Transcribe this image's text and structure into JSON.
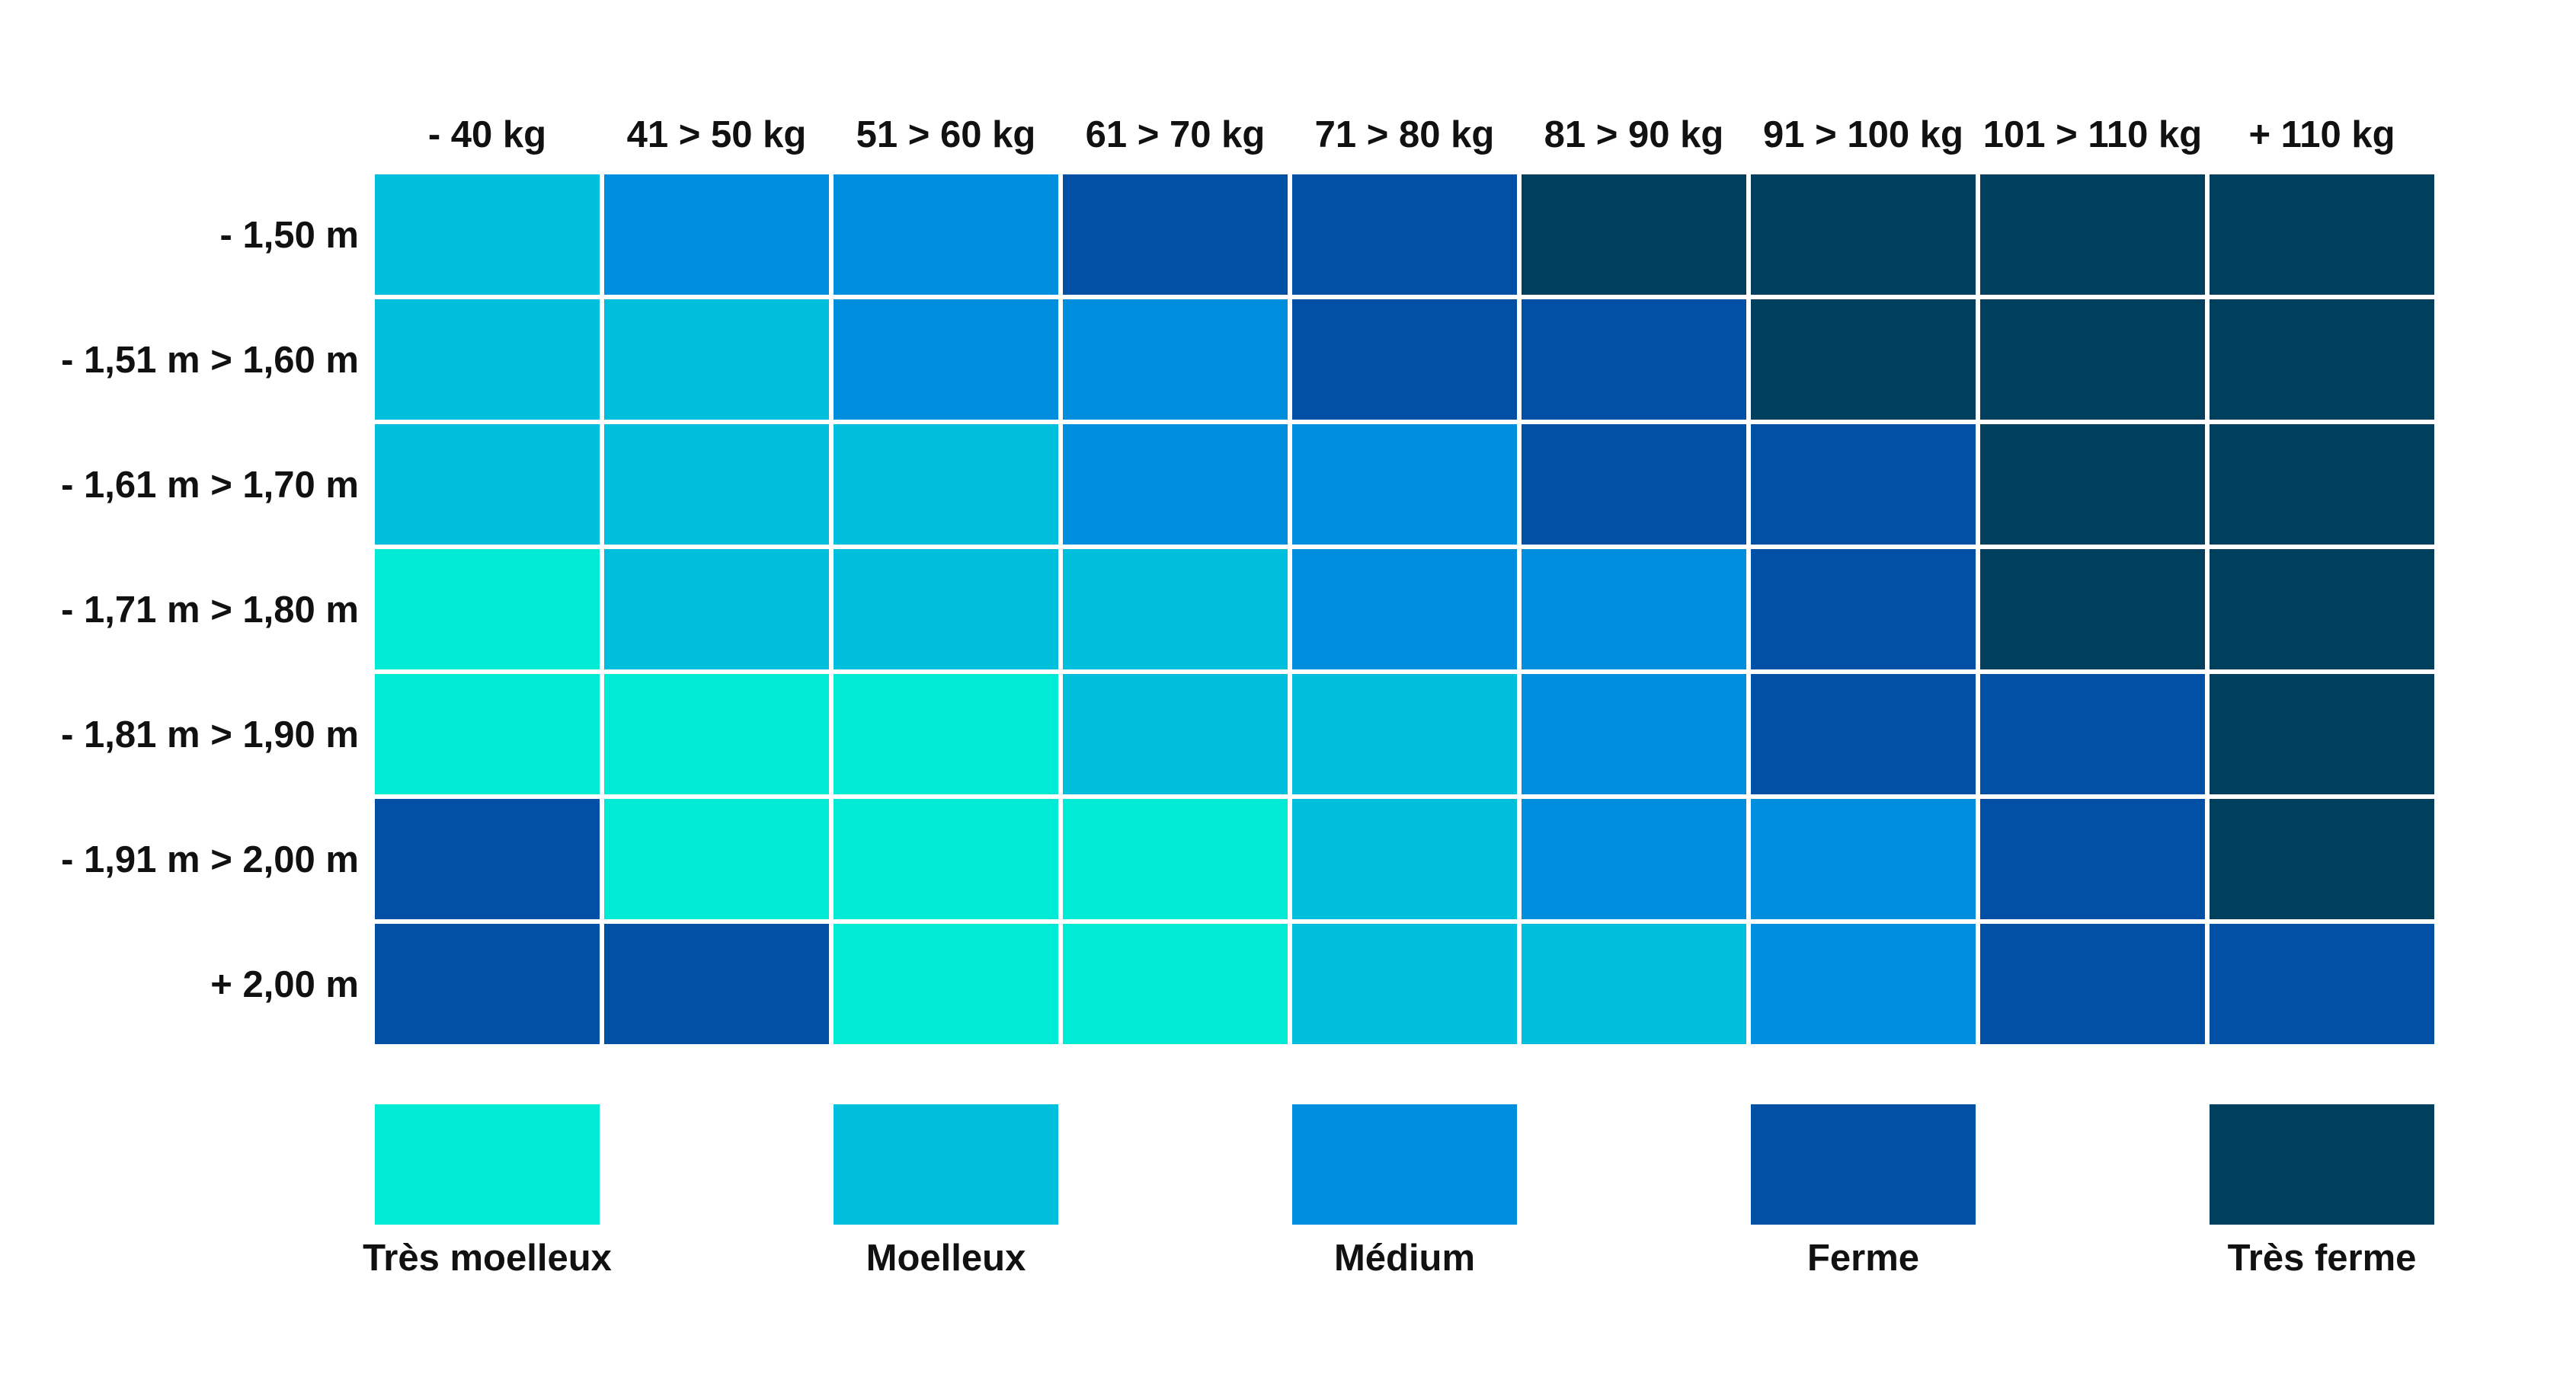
{
  "chart_data": {
    "type": "heatmap",
    "title": "",
    "xlabel": "",
    "ylabel": "",
    "columns": [
      "- 40 kg",
      "41 > 50 kg",
      "51 > 60 kg",
      "61 > 70 kg",
      "71 > 80 kg",
      "81 > 90 kg",
      "91 > 100 kg",
      "101 > 110 kg",
      "+ 110 kg"
    ],
    "rows": [
      "- 1,50 m",
      "- 1,51 m > 1,60 m",
      "- 1,61 m > 1,70 m",
      "- 1,71 m > 1,80 m",
      "- 1,81 m > 1,90 m",
      "- 1,91 m > 2,00 m",
      "+ 2,00 m"
    ],
    "levels": [
      "Très moelleux",
      "Moelleux",
      "Médium",
      "Ferme",
      "Très ferme"
    ],
    "level_colors": [
      "#00EBD6",
      "#00BFDD",
      "#008FDF",
      "#0051A5",
      "#003F5E"
    ],
    "values": [
      [
        1,
        2,
        2,
        3,
        3,
        4,
        4,
        4,
        4
      ],
      [
        1,
        1,
        2,
        2,
        3,
        3,
        4,
        4,
        4
      ],
      [
        1,
        1,
        1,
        2,
        2,
        3,
        3,
        4,
        4
      ],
      [
        0,
        1,
        1,
        1,
        2,
        2,
        3,
        4,
        4
      ],
      [
        0,
        0,
        0,
        1,
        1,
        2,
        3,
        3,
        4
      ],
      [
        3,
        0,
        0,
        0,
        1,
        2,
        2,
        3,
        4
      ],
      [
        3,
        3,
        0,
        0,
        1,
        1,
        2,
        3,
        3
      ]
    ],
    "legend_position": "bottom",
    "grid": false
  }
}
